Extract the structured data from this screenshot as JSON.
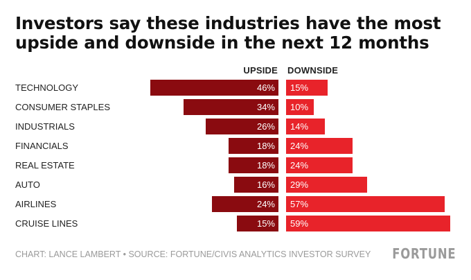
{
  "header": {
    "title_line1": "Investors say these industries have the most",
    "title_line2": "upside and downside in the next 12 months"
  },
  "columns": {
    "upside": "UPSIDE",
    "downside": "DOWNSIDE"
  },
  "footer": {
    "source": "CHART: LANCE LAMBERT • SOURCE: FORTUNE/CIVIS ANALYTICS INVESTOR SURVEY",
    "logo": "FORTUNE"
  },
  "colors": {
    "upside": "#8a0b10",
    "downside": "#e8232a"
  },
  "chart_data": {
    "type": "bar",
    "categories": [
      "TECHNOLOGY",
      "CONSUMER STAPLES",
      "INDUSTRIALS",
      "FINANCIALS",
      "REAL ESTATE",
      "AUTO",
      "AIRLINES",
      "CRUISE LINES"
    ],
    "series": [
      {
        "name": "UPSIDE",
        "values": [
          46,
          34,
          26,
          18,
          18,
          16,
          24,
          15
        ],
        "labels": [
          "46%",
          "34%",
          "26%",
          "18%",
          "18%",
          "16%",
          "24%",
          "15%"
        ]
      },
      {
        "name": "DOWNSIDE",
        "values": [
          15,
          10,
          14,
          24,
          24,
          29,
          57,
          59
        ],
        "labels": [
          "15%",
          "10%",
          "14%",
          "24%",
          "24%",
          "29%",
          "57%",
          "59%"
        ]
      }
    ],
    "title": "Investors say these industries have the most upside and downside in the next 12 months",
    "unit": "%",
    "grid": false
  }
}
